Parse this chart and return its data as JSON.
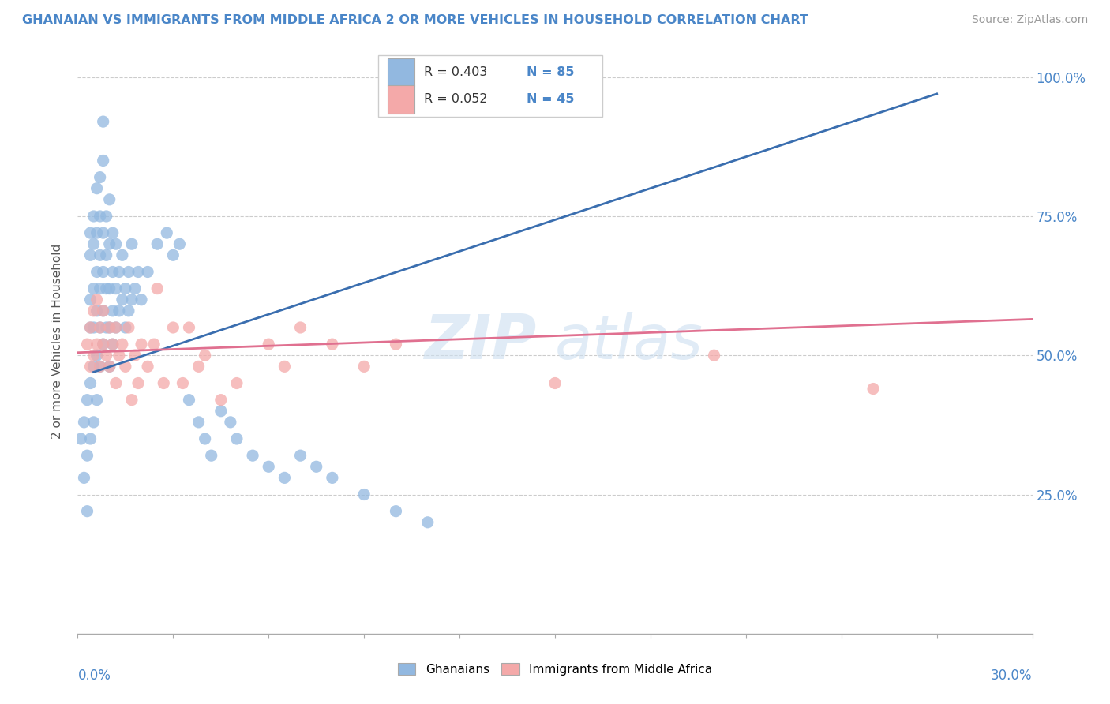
{
  "title": "GHANAIAN VS IMMIGRANTS FROM MIDDLE AFRICA 2 OR MORE VEHICLES IN HOUSEHOLD CORRELATION CHART",
  "source": "Source: ZipAtlas.com",
  "xlabel_bottom_left": "0.0%",
  "xlabel_bottom_right": "30.0%",
  "ylabel": "2 or more Vehicles in Household",
  "yaxis_labels": [
    "25.0%",
    "50.0%",
    "75.0%",
    "100.0%"
  ],
  "yaxis_values": [
    0.25,
    0.5,
    0.75,
    1.0
  ],
  "xmin": 0.0,
  "xmax": 0.3,
  "ymin": 0.0,
  "ymax": 1.05,
  "blue_color": "#92b8e0",
  "pink_color": "#f4a9a9",
  "blue_line_color": "#3a6eaf",
  "pink_line_color": "#e07090",
  "watermark_zip": "ZIP",
  "watermark_atlas": "atlas",
  "blue_line_x": [
    0.005,
    0.27
  ],
  "blue_line_y": [
    0.47,
    0.97
  ],
  "pink_line_x": [
    0.0,
    0.3
  ],
  "pink_line_y": [
    0.505,
    0.565
  ],
  "blue_scatter": [
    [
      0.001,
      0.35
    ],
    [
      0.002,
      0.28
    ],
    [
      0.002,
      0.38
    ],
    [
      0.003,
      0.22
    ],
    [
      0.003,
      0.32
    ],
    [
      0.003,
      0.42
    ],
    [
      0.004,
      0.35
    ],
    [
      0.004,
      0.45
    ],
    [
      0.004,
      0.55
    ],
    [
      0.004,
      0.6
    ],
    [
      0.004,
      0.68
    ],
    [
      0.004,
      0.72
    ],
    [
      0.005,
      0.38
    ],
    [
      0.005,
      0.48
    ],
    [
      0.005,
      0.55
    ],
    [
      0.005,
      0.62
    ],
    [
      0.005,
      0.7
    ],
    [
      0.005,
      0.75
    ],
    [
      0.006,
      0.42
    ],
    [
      0.006,
      0.5
    ],
    [
      0.006,
      0.58
    ],
    [
      0.006,
      0.65
    ],
    [
      0.006,
      0.72
    ],
    [
      0.006,
      0.8
    ],
    [
      0.007,
      0.48
    ],
    [
      0.007,
      0.55
    ],
    [
      0.007,
      0.62
    ],
    [
      0.007,
      0.68
    ],
    [
      0.007,
      0.75
    ],
    [
      0.007,
      0.82
    ],
    [
      0.008,
      0.52
    ],
    [
      0.008,
      0.58
    ],
    [
      0.008,
      0.65
    ],
    [
      0.008,
      0.72
    ],
    [
      0.008,
      0.85
    ],
    [
      0.008,
      0.92
    ],
    [
      0.009,
      0.55
    ],
    [
      0.009,
      0.62
    ],
    [
      0.009,
      0.68
    ],
    [
      0.009,
      0.75
    ],
    [
      0.01,
      0.48
    ],
    [
      0.01,
      0.55
    ],
    [
      0.01,
      0.62
    ],
    [
      0.01,
      0.7
    ],
    [
      0.01,
      0.78
    ],
    [
      0.011,
      0.52
    ],
    [
      0.011,
      0.58
    ],
    [
      0.011,
      0.65
    ],
    [
      0.011,
      0.72
    ],
    [
      0.012,
      0.55
    ],
    [
      0.012,
      0.62
    ],
    [
      0.012,
      0.7
    ],
    [
      0.013,
      0.58
    ],
    [
      0.013,
      0.65
    ],
    [
      0.014,
      0.6
    ],
    [
      0.014,
      0.68
    ],
    [
      0.015,
      0.55
    ],
    [
      0.015,
      0.62
    ],
    [
      0.016,
      0.58
    ],
    [
      0.016,
      0.65
    ],
    [
      0.017,
      0.6
    ],
    [
      0.017,
      0.7
    ],
    [
      0.018,
      0.62
    ],
    [
      0.019,
      0.65
    ],
    [
      0.02,
      0.6
    ],
    [
      0.022,
      0.65
    ],
    [
      0.025,
      0.7
    ],
    [
      0.028,
      0.72
    ],
    [
      0.03,
      0.68
    ],
    [
      0.032,
      0.7
    ],
    [
      0.035,
      0.42
    ],
    [
      0.038,
      0.38
    ],
    [
      0.04,
      0.35
    ],
    [
      0.042,
      0.32
    ],
    [
      0.045,
      0.4
    ],
    [
      0.048,
      0.38
    ],
    [
      0.05,
      0.35
    ],
    [
      0.055,
      0.32
    ],
    [
      0.06,
      0.3
    ],
    [
      0.065,
      0.28
    ],
    [
      0.07,
      0.32
    ],
    [
      0.075,
      0.3
    ],
    [
      0.08,
      0.28
    ],
    [
      0.09,
      0.25
    ],
    [
      0.1,
      0.22
    ],
    [
      0.11,
      0.2
    ]
  ],
  "pink_scatter": [
    [
      0.003,
      0.52
    ],
    [
      0.004,
      0.48
    ],
    [
      0.004,
      0.55
    ],
    [
      0.005,
      0.5
    ],
    [
      0.005,
      0.58
    ],
    [
      0.006,
      0.52
    ],
    [
      0.006,
      0.6
    ],
    [
      0.007,
      0.55
    ],
    [
      0.007,
      0.48
    ],
    [
      0.008,
      0.52
    ],
    [
      0.008,
      0.58
    ],
    [
      0.009,
      0.5
    ],
    [
      0.01,
      0.55
    ],
    [
      0.01,
      0.48
    ],
    [
      0.011,
      0.52
    ],
    [
      0.012,
      0.45
    ],
    [
      0.012,
      0.55
    ],
    [
      0.013,
      0.5
    ],
    [
      0.014,
      0.52
    ],
    [
      0.015,
      0.48
    ],
    [
      0.016,
      0.55
    ],
    [
      0.017,
      0.42
    ],
    [
      0.018,
      0.5
    ],
    [
      0.019,
      0.45
    ],
    [
      0.02,
      0.52
    ],
    [
      0.022,
      0.48
    ],
    [
      0.024,
      0.52
    ],
    [
      0.025,
      0.62
    ],
    [
      0.027,
      0.45
    ],
    [
      0.03,
      0.55
    ],
    [
      0.033,
      0.45
    ],
    [
      0.035,
      0.55
    ],
    [
      0.038,
      0.48
    ],
    [
      0.04,
      0.5
    ],
    [
      0.045,
      0.42
    ],
    [
      0.05,
      0.45
    ],
    [
      0.06,
      0.52
    ],
    [
      0.065,
      0.48
    ],
    [
      0.07,
      0.55
    ],
    [
      0.08,
      0.52
    ],
    [
      0.09,
      0.48
    ],
    [
      0.1,
      0.52
    ],
    [
      0.15,
      0.45
    ],
    [
      0.2,
      0.5
    ],
    [
      0.25,
      0.44
    ]
  ]
}
